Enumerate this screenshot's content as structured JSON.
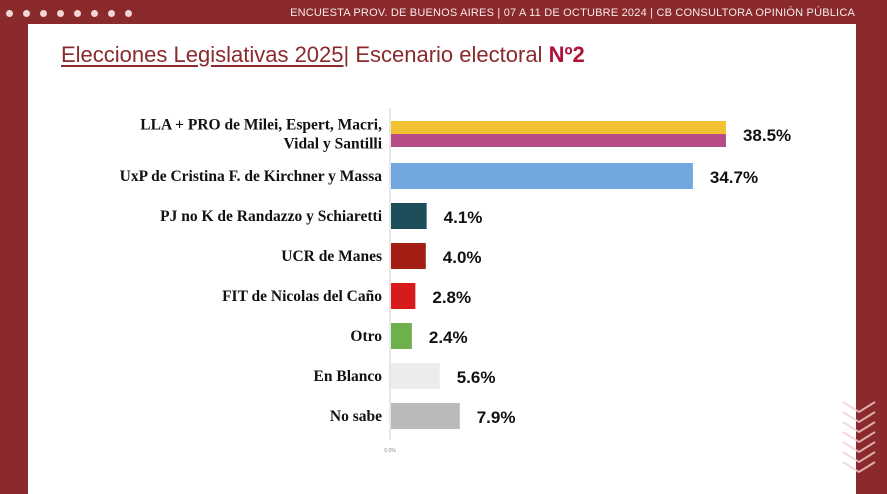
{
  "header": {
    "survey_line": "ENCUESTA PROV. DE BUENOS AIRES | 07 A 11 DE OCTUBRE 2024 | CB CONSULTORA OPINIÓN PÚBLICA"
  },
  "title": {
    "main": "Elecciones Legislativas 2025",
    "separator": "| Escenario electoral ",
    "scenario": "Nº2"
  },
  "chart_data": {
    "type": "bar",
    "orientation": "horizontal",
    "title": "Elecciones Legislativas 2025| Escenario electoral Nº2",
    "xlabel": "",
    "ylabel": "",
    "grid": false,
    "xlim": [
      0,
      40
    ],
    "axis_tick_label": "0.0%",
    "categories": [
      [
        "LLA + PRO de Milei, Espert, Macri,",
        "Vidal y Santilli"
      ],
      [
        "UxP de Cristina F. de Kirchner y Massa"
      ],
      [
        "PJ no K de Randazzo y Schiaretti"
      ],
      [
        "UCR de Manes"
      ],
      [
        "FIT de Nicolas del Caño"
      ],
      [
        "Otro"
      ],
      [
        "En Blanco"
      ],
      [
        "No sabe"
      ]
    ],
    "values": [
      38.5,
      34.7,
      4.1,
      4.0,
      2.8,
      2.4,
      5.6,
      7.9
    ],
    "value_labels": [
      "38.5%",
      "34.7%",
      "4.1%",
      "4.0%",
      "2.8%",
      "2.4%",
      "5.6%",
      "7.9%"
    ],
    "colors": [
      [
        "#f2c132",
        "#b64d86"
      ],
      [
        "#70a7df"
      ],
      [
        "#1e4e5a"
      ],
      [
        "#a31e13"
      ],
      [
        "#d71a1a"
      ],
      [
        "#6db04c"
      ],
      [
        "#ececec"
      ],
      [
        "#bababa"
      ]
    ]
  }
}
